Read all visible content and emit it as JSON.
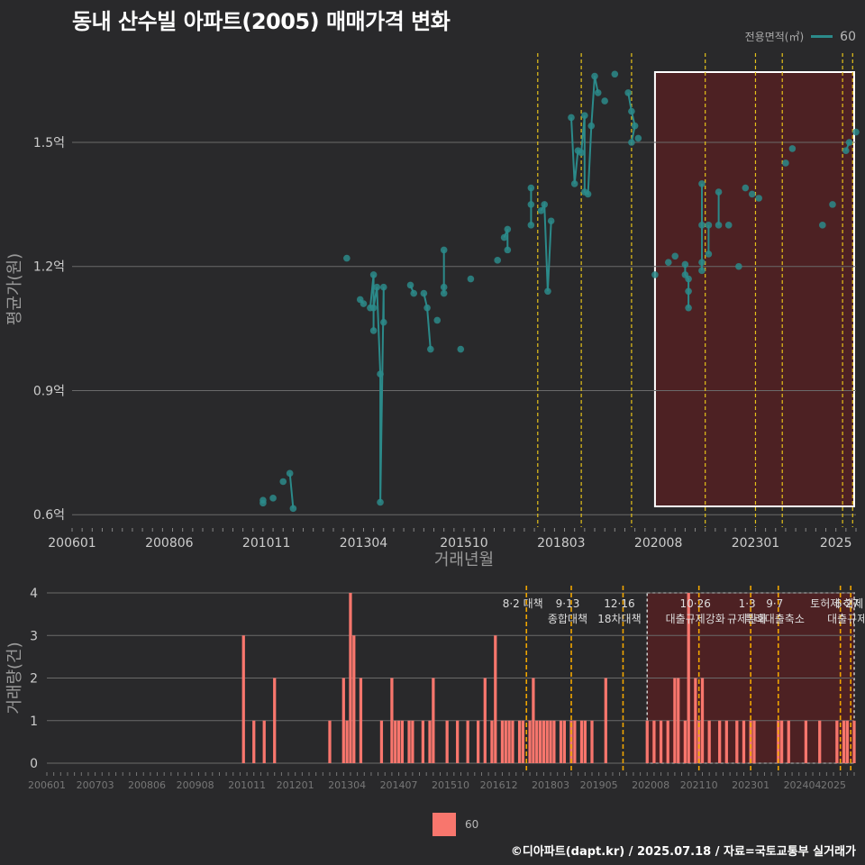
{
  "title": "동내 산수빌 아파트(2005) 매매가격 변화",
  "footer": "©디아파트(dapt.kr) / 2025.07.18 / 자료=국토교통부 실거래가",
  "legend": {
    "title": "전용면적(㎡)",
    "entries": [
      "60"
    ]
  },
  "colors": {
    "background": "#29292b",
    "line": "#2b8a8a",
    "bar": "#f8766d",
    "policy_line": "#e6c21a",
    "highlight_fill": "#5a1f22",
    "grid": "#6a6a6a"
  },
  "chart_data": [
    {
      "type": "line",
      "title": "동내 산수빌 아파트(2005) 매매가격 변화",
      "xlabel": "거래년월",
      "ylabel": "평균가(원)",
      "x_ticks": [
        "200601",
        "200806",
        "201011",
        "201304",
        "201510",
        "201803",
        "202008",
        "202301",
        "2025"
      ],
      "y_ticks": [
        "0.6억",
        "0.9억",
        "1.2억",
        "1.5억"
      ],
      "ylim": [
        0.57,
        1.72
      ],
      "xlim": [
        "2006-01",
        "2025-07"
      ],
      "highlight_range": [
        "2020-07",
        "2025-07"
      ],
      "policy_dates": [
        "2017-08",
        "2018-09",
        "2019-12",
        "2021-10",
        "2023-01",
        "2023-09",
        "2025-03",
        "2025-06"
      ],
      "series": [
        {
          "name": "60",
          "points": [
            [
              "2010-10",
              0.635
            ],
            [
              "2010-10",
              0.628
            ],
            [
              "2011-01",
              0.64
            ],
            [
              "2011-04",
              0.68
            ],
            [
              "2011-06",
              0.7
            ],
            [
              "2011-07",
              0.615
            ],
            [
              "2012-11",
              1.22
            ],
            [
              "2013-03",
              1.12
            ],
            [
              "2013-04",
              1.11
            ],
            [
              "2013-06",
              1.1
            ],
            [
              "2013-07",
              1.18
            ],
            [
              "2013-07",
              1.045
            ],
            [
              "2013-07",
              1.1
            ],
            [
              "2013-08",
              1.15
            ],
            [
              "2013-09",
              0.94
            ],
            [
              "2013-09",
              0.63
            ],
            [
              "2013-10",
              1.15
            ],
            [
              "2013-10",
              1.065
            ],
            [
              "2014-06",
              1.155
            ],
            [
              "2014-07",
              1.135
            ],
            [
              "2014-10",
              1.135
            ],
            [
              "2014-11",
              1.1
            ],
            [
              "2014-12",
              1.0
            ],
            [
              "2015-02",
              1.07
            ],
            [
              "2015-04",
              1.15
            ],
            [
              "2015-04",
              1.135
            ],
            [
              "2015-04",
              1.24
            ],
            [
              "2015-09",
              1.0
            ],
            [
              "2015-12",
              1.17
            ],
            [
              "2016-08",
              1.215
            ],
            [
              "2016-10",
              1.27
            ],
            [
              "2016-11",
              1.29
            ],
            [
              "2016-11",
              1.24
            ],
            [
              "2017-06",
              1.39
            ],
            [
              "2017-06",
              1.35
            ],
            [
              "2017-06",
              1.3
            ],
            [
              "2017-09",
              1.335
            ],
            [
              "2017-10",
              1.35
            ],
            [
              "2017-11",
              1.14
            ],
            [
              "2017-12",
              1.31
            ],
            [
              "2018-06",
              1.56
            ],
            [
              "2018-07",
              1.4
            ],
            [
              "2018-08",
              1.48
            ],
            [
              "2018-09",
              1.475
            ],
            [
              "2018-10",
              1.565
            ],
            [
              "2018-10",
              1.38
            ],
            [
              "2018-11",
              1.375
            ],
            [
              "2018-12",
              1.54
            ],
            [
              "2019-01",
              1.66
            ],
            [
              "2019-02",
              1.62
            ],
            [
              "2019-04",
              1.6
            ],
            [
              "2019-07",
              1.665
            ],
            [
              "2019-11",
              1.62
            ],
            [
              "2019-12",
              1.575
            ],
            [
              "2020-01",
              1.54
            ],
            [
              "2019-12",
              1.5
            ],
            [
              "2020-02",
              1.51
            ],
            [
              "2020-07",
              1.18
            ],
            [
              "2020-11",
              1.21
            ],
            [
              "2021-01",
              1.225
            ],
            [
              "2021-04",
              1.205
            ],
            [
              "2021-04",
              1.18
            ],
            [
              "2021-05",
              1.17
            ],
            [
              "2021-05",
              1.14
            ],
            [
              "2021-05",
              1.1
            ],
            [
              "2021-09",
              1.21
            ],
            [
              "2021-09",
              1.19
            ],
            [
              "2021-09",
              1.3
            ],
            [
              "2021-09",
              1.4
            ],
            [
              "2021-11",
              1.23
            ],
            [
              "2021-11",
              1.3
            ],
            [
              "2022-02",
              1.38
            ],
            [
              "2022-02",
              1.3
            ],
            [
              "2022-05",
              1.3
            ],
            [
              "2022-08",
              1.2
            ],
            [
              "2022-10",
              1.39
            ],
            [
              "2022-12",
              1.375
            ],
            [
              "2023-02",
              1.365
            ],
            [
              "2023-10",
              1.45
            ],
            [
              "2023-12",
              1.485
            ],
            [
              "2024-09",
              1.3
            ],
            [
              "2024-12",
              1.35
            ],
            [
              "2025-04",
              1.48
            ],
            [
              "2025-05",
              1.5
            ],
            [
              "2025-07",
              1.525
            ]
          ]
        }
      ]
    },
    {
      "type": "bar",
      "ylabel": "거래량(건)",
      "x_ticks": [
        "200601",
        "200703",
        "200806",
        "200908",
        "201011",
        "201201",
        "201304",
        "201407",
        "201510",
        "201612",
        "201803",
        "201905",
        "202008",
        "202110",
        "202301",
        "202404",
        "2025"
      ],
      "y_ticks": [
        "0",
        "1",
        "2",
        "3",
        "4"
      ],
      "ylim": [
        0,
        4
      ],
      "policy_annotations": [
        {
          "date": "2017-08",
          "label": "8·2 대책"
        },
        {
          "date": "2018-09",
          "label": "9·13\n종합대책"
        },
        {
          "date": "2019-12",
          "label": "12·16\n18차대책"
        },
        {
          "date": "2021-10",
          "label": "10·26\n대출규제강화"
        },
        {
          "date": "2023-01",
          "label": "1·3\n규제완화"
        },
        {
          "date": "2023-09",
          "label": "9·7\n특례대출축소"
        },
        {
          "date": "2025-03",
          "label": "토허제 해제"
        },
        {
          "date": "2025-06",
          "label": "6·27\n대출규제"
        }
      ],
      "series": [
        {
          "name": "60",
          "values": [
            [
              "2010-10",
              3
            ],
            [
              "2011-01",
              1
            ],
            [
              "2011-04",
              1
            ],
            [
              "2011-07",
              2
            ],
            [
              "2012-11",
              1
            ],
            [
              "2013-03",
              2
            ],
            [
              "2013-04",
              1
            ],
            [
              "2013-05",
              4
            ],
            [
              "2013-06",
              3
            ],
            [
              "2013-08",
              2
            ],
            [
              "2014-02",
              1
            ],
            [
              "2014-05",
              2
            ],
            [
              "2014-06",
              1
            ],
            [
              "2014-07",
              1
            ],
            [
              "2014-08",
              1
            ],
            [
              "2014-10",
              1
            ],
            [
              "2014-11",
              1
            ],
            [
              "2015-02",
              1
            ],
            [
              "2015-04",
              1
            ],
            [
              "2015-05",
              2
            ],
            [
              "2015-09",
              1
            ],
            [
              "2015-12",
              1
            ],
            [
              "2016-03",
              1
            ],
            [
              "2016-06",
              1
            ],
            [
              "2016-08",
              2
            ],
            [
              "2016-10",
              1
            ],
            [
              "2016-11",
              3
            ],
            [
              "2017-01",
              1
            ],
            [
              "2017-02",
              1
            ],
            [
              "2017-03",
              1
            ],
            [
              "2017-04",
              1
            ],
            [
              "2017-06",
              1
            ],
            [
              "2017-07",
              1
            ],
            [
              "2017-09",
              1
            ],
            [
              "2017-10",
              2
            ],
            [
              "2017-11",
              1
            ],
            [
              "2017-12",
              1
            ],
            [
              "2018-01",
              1
            ],
            [
              "2018-02",
              1
            ],
            [
              "2018-03",
              1
            ],
            [
              "2018-04",
              1
            ],
            [
              "2018-06",
              1
            ],
            [
              "2018-07",
              1
            ],
            [
              "2018-09",
              1
            ],
            [
              "2018-10",
              1
            ],
            [
              "2018-12",
              1
            ],
            [
              "2019-01",
              1
            ],
            [
              "2019-03",
              1
            ],
            [
              "2019-07",
              2
            ],
            [
              "2020-07",
              1
            ],
            [
              "2020-09",
              1
            ],
            [
              "2020-11",
              1
            ],
            [
              "2021-01",
              1
            ],
            [
              "2021-03",
              2
            ],
            [
              "2021-04",
              2
            ],
            [
              "2021-06",
              1
            ],
            [
              "2021-07",
              4
            ],
            [
              "2021-09",
              2
            ],
            [
              "2021-10",
              1
            ],
            [
              "2021-11",
              2
            ],
            [
              "2022-01",
              1
            ],
            [
              "2022-04",
              1
            ],
            [
              "2022-06",
              1
            ],
            [
              "2022-09",
              1
            ],
            [
              "2022-11",
              1
            ],
            [
              "2023-01",
              1
            ],
            [
              "2023-02",
              1
            ],
            [
              "2023-09",
              1
            ],
            [
              "2023-10",
              1
            ],
            [
              "2023-12",
              1
            ],
            [
              "2024-05",
              1
            ],
            [
              "2024-09",
              1
            ],
            [
              "2025-02",
              1
            ],
            [
              "2025-04",
              1
            ],
            [
              "2025-05",
              1
            ],
            [
              "2025-07",
              1
            ]
          ]
        }
      ]
    }
  ]
}
